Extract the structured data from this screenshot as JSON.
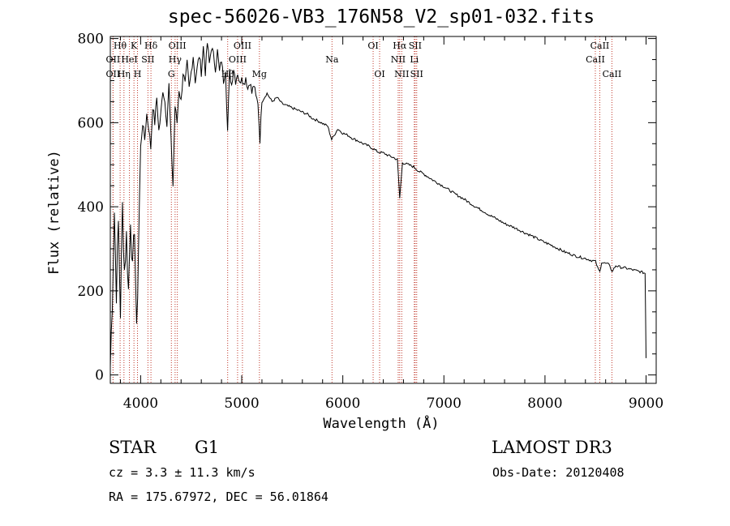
{
  "chart_data": {
    "type": "line",
    "title": "spec-56026-VB3_176N58_V2_sp01-032.fits",
    "xlabel": "Wavelength (Å)",
    "ylabel": "Flux (relative)",
    "xlim": [
      3700,
      9100
    ],
    "ylim": [
      -20,
      805
    ],
    "xticks": [
      4000,
      5000,
      6000,
      7000,
      8000,
      9000
    ],
    "yticks": [
      0,
      200,
      400,
      600,
      800
    ],
    "x_minor_step": 200,
    "y_minor_step": 50,
    "line_color": "#000000",
    "marker_color": "#c0392b",
    "series": [
      {
        "name": "spectrum",
        "points": [
          [
            3700,
            20
          ],
          [
            3720,
            180
          ],
          [
            3740,
            390
          ],
          [
            3760,
            200
          ],
          [
            3780,
            360
          ],
          [
            3800,
            150
          ],
          [
            3820,
            400
          ],
          [
            3840,
            250
          ],
          [
            3860,
            330
          ],
          [
            3880,
            200
          ],
          [
            3900,
            380
          ],
          [
            3920,
            240
          ],
          [
            3940,
            360
          ],
          [
            3960,
            90
          ],
          [
            3980,
            320
          ],
          [
            4000,
            540
          ],
          [
            4020,
            600
          ],
          [
            4040,
            560
          ],
          [
            4060,
            620
          ],
          [
            4080,
            590
          ],
          [
            4100,
            540
          ],
          [
            4120,
            640
          ],
          [
            4140,
            600
          ],
          [
            4160,
            660
          ],
          [
            4180,
            580
          ],
          [
            4200,
            620
          ],
          [
            4220,
            680
          ],
          [
            4240,
            650
          ],
          [
            4260,
            600
          ],
          [
            4280,
            690
          ],
          [
            4300,
            560
          ],
          [
            4320,
            450
          ],
          [
            4340,
            640
          ],
          [
            4360,
            600
          ],
          [
            4380,
            680
          ],
          [
            4400,
            650
          ],
          [
            4420,
            720
          ],
          [
            4440,
            690
          ],
          [
            4460,
            740
          ],
          [
            4480,
            680
          ],
          [
            4500,
            720
          ],
          [
            4520,
            760
          ],
          [
            4540,
            700
          ],
          [
            4560,
            730
          ],
          [
            4580,
            760
          ],
          [
            4600,
            720
          ],
          [
            4620,
            780
          ],
          [
            4640,
            720
          ],
          [
            4660,
            790
          ],
          [
            4680,
            740
          ],
          [
            4700,
            780
          ],
          [
            4720,
            760
          ],
          [
            4740,
            730
          ],
          [
            4760,
            770
          ],
          [
            4780,
            720
          ],
          [
            4800,
            750
          ],
          [
            4820,
            700
          ],
          [
            4840,
            730
          ],
          [
            4860,
            580
          ],
          [
            4880,
            720
          ],
          [
            4900,
            690
          ],
          [
            4920,
            730
          ],
          [
            4940,
            700
          ],
          [
            4960,
            720
          ],
          [
            4980,
            690
          ],
          [
            5000,
            715
          ],
          [
            5020,
            690
          ],
          [
            5040,
            710
          ],
          [
            5060,
            680
          ],
          [
            5080,
            700
          ],
          [
            5100,
            670
          ],
          [
            5120,
            690
          ],
          [
            5140,
            660
          ],
          [
            5160,
            650
          ],
          [
            5180,
            560
          ],
          [
            5200,
            650
          ],
          [
            5250,
            670
          ],
          [
            5300,
            650
          ],
          [
            5350,
            660
          ],
          [
            5400,
            645
          ],
          [
            5450,
            640
          ],
          [
            5500,
            635
          ],
          [
            5550,
            630
          ],
          [
            5600,
            625
          ],
          [
            5650,
            620
          ],
          [
            5700,
            610
          ],
          [
            5750,
            605
          ],
          [
            5800,
            598
          ],
          [
            5850,
            592
          ],
          [
            5890,
            560
          ],
          [
            5950,
            585
          ],
          [
            6000,
            575
          ],
          [
            6050,
            570
          ],
          [
            6100,
            562
          ],
          [
            6150,
            557
          ],
          [
            6200,
            550
          ],
          [
            6250,
            545
          ],
          [
            6300,
            538
          ],
          [
            6350,
            530
          ],
          [
            6400,
            528
          ],
          [
            6450,
            522
          ],
          [
            6500,
            517
          ],
          [
            6540,
            512
          ],
          [
            6563,
            420
          ],
          [
            6590,
            505
          ],
          [
            6650,
            500
          ],
          [
            6700,
            495
          ],
          [
            6750,
            485
          ],
          [
            6800,
            478
          ],
          [
            6850,
            470
          ],
          [
            6900,
            462
          ],
          [
            6950,
            455
          ],
          [
            7000,
            448
          ],
          [
            7050,
            440
          ],
          [
            7100,
            432
          ],
          [
            7150,
            425
          ],
          [
            7200,
            418
          ],
          [
            7250,
            410
          ],
          [
            7300,
            402
          ],
          [
            7350,
            395
          ],
          [
            7400,
            388
          ],
          [
            7450,
            380
          ],
          [
            7500,
            374
          ],
          [
            7550,
            367
          ],
          [
            7600,
            360
          ],
          [
            7650,
            355
          ],
          [
            7700,
            350
          ],
          [
            7750,
            344
          ],
          [
            7800,
            338
          ],
          [
            7850,
            333
          ],
          [
            7900,
            327
          ],
          [
            7950,
            321
          ],
          [
            8000,
            315
          ],
          [
            8050,
            310
          ],
          [
            8100,
            304
          ],
          [
            8150,
            298
          ],
          [
            8200,
            292
          ],
          [
            8250,
            288
          ],
          [
            8300,
            283
          ],
          [
            8350,
            280
          ],
          [
            8400,
            277
          ],
          [
            8450,
            273
          ],
          [
            8500,
            270
          ],
          [
            8520,
            255
          ],
          [
            8542,
            245
          ],
          [
            8560,
            268
          ],
          [
            8600,
            265
          ],
          [
            8640,
            262
          ],
          [
            8662,
            245
          ],
          [
            8700,
            260
          ],
          [
            8750,
            256
          ],
          [
            8800,
            254
          ],
          [
            8850,
            251
          ],
          [
            8900,
            248
          ],
          [
            8950,
            245
          ],
          [
            8990,
            242
          ],
          [
            8995,
            150
          ],
          [
            9000,
            40
          ]
        ]
      }
    ],
    "line_markers": [
      {
        "wl": 3797,
        "label": "Hθ",
        "row": 0
      },
      {
        "wl": 3727,
        "label": "OII",
        "row": 1
      },
      {
        "wl": 3727,
        "label": "OII",
        "row": 2
      },
      {
        "wl": 3835,
        "label": "Hη",
        "row": 2
      },
      {
        "wl": 3889,
        "label": "HeI",
        "row": 1
      },
      {
        "wl": 3934,
        "label": "K",
        "row": 0
      },
      {
        "wl": 3969,
        "label": "H",
        "row": 2
      },
      {
        "wl": 4072,
        "label": "SII",
        "row": 1
      },
      {
        "wl": 4102,
        "label": "Hδ",
        "row": 0
      },
      {
        "wl": 4304,
        "label": "G",
        "row": 2
      },
      {
        "wl": 4341,
        "label": "Hγ",
        "row": 1
      },
      {
        "wl": 4363,
        "label": "OIII",
        "row": 0
      },
      {
        "wl": 4861,
        "label": "Hβ",
        "row": 2
      },
      {
        "wl": 4959,
        "label": "OIII",
        "row": 1
      },
      {
        "wl": 5007,
        "label": "OIII",
        "row": 0
      },
      {
        "wl": 5175,
        "label": "Mg",
        "row": 2
      },
      {
        "wl": 5893,
        "label": "Na",
        "row": 1
      },
      {
        "wl": 6300,
        "label": "OI",
        "row": 0
      },
      {
        "wl": 6364,
        "label": "OI",
        "row": 2
      },
      {
        "wl": 6548,
        "label": "NII",
        "row": 1
      },
      {
        "wl": 6563,
        "label": "Hα",
        "row": 0
      },
      {
        "wl": 6583,
        "label": "NII",
        "row": 2
      },
      {
        "wl": 6707,
        "label": "Li",
        "row": 1
      },
      {
        "wl": 6716,
        "label": "SII",
        "row": 0
      },
      {
        "wl": 6731,
        "label": "SII",
        "row": 2
      },
      {
        "wl": 8498,
        "label": "CaII",
        "row": 1
      },
      {
        "wl": 8542,
        "label": "CaII",
        "row": 0
      },
      {
        "wl": 8662,
        "label": "CaII",
        "row": 2
      }
    ]
  },
  "info": {
    "object_class": "STAR",
    "subclass": "G1",
    "survey": "LAMOST DR3",
    "redshift": "cz = 3.3 ± 11.3 km/s",
    "obs_date": "Obs-Date: 20120408",
    "coords": "RA = 175.67972, DEC =  56.01864"
  }
}
